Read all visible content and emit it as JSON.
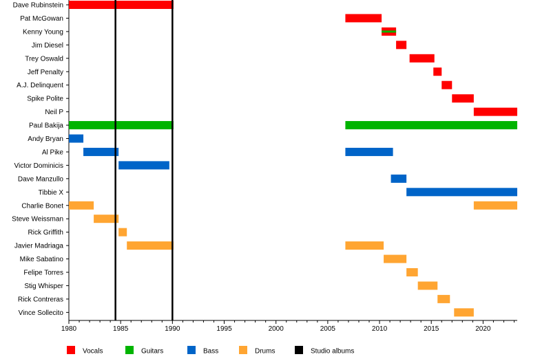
{
  "chart_data": {
    "type": "timeline",
    "xlim": [
      1980,
      2023.3
    ],
    "x_ticks": [
      1980,
      1985,
      1990,
      1995,
      2000,
      2005,
      2010,
      2015,
      2020
    ],
    "x_tick_labels": [
      "1980",
      "1985",
      "1990",
      "1995",
      "2000",
      "2005",
      "2010",
      "2015",
      "2020"
    ],
    "members": [
      "Dave Rubinstein",
      "Pat McGowan",
      "Kenny Young",
      "Jim Diesel",
      "Trey Oswald",
      "Jeff Penalty",
      "A.J. Delinquent",
      "Spike Polite",
      "Neil P",
      "Paul Bakija",
      "Andy Bryan",
      "Al Pike",
      "Victor Dominicis",
      "Dave Manzullo",
      "Tibbie X",
      "Charlie Bonet",
      "Steve Weissman",
      "Rick Griffith",
      "Javier Madriaga",
      "Mike Sabatino",
      "Felipe Torres",
      "Stig Whisper",
      "Rick Contreras",
      "Vince Sollecito"
    ],
    "colors": {
      "vocals": "#ff0000",
      "guitars": "#00b400",
      "bass": "#0064c8",
      "drums": "#ffa532",
      "albums": "#000000"
    },
    "bars": [
      {
        "member": 0,
        "role": "vocals",
        "start": 1980.0,
        "end": 1990.1
      },
      {
        "member": 1,
        "role": "vocals",
        "start": 2006.7,
        "end": 2010.2
      },
      {
        "member": 2,
        "role": "vocals",
        "start": 2010.2,
        "end": 2011.6
      },
      {
        "member": 2,
        "role": "guitars",
        "start": 2010.2,
        "end": 2011.6,
        "stripe": true
      },
      {
        "member": 3,
        "role": "vocals",
        "start": 2011.6,
        "end": 2012.6
      },
      {
        "member": 4,
        "role": "vocals",
        "start": 2012.9,
        "end": 2015.3
      },
      {
        "member": 5,
        "role": "vocals",
        "start": 2015.2,
        "end": 2016.0
      },
      {
        "member": 6,
        "role": "vocals",
        "start": 2016.0,
        "end": 2017.0
      },
      {
        "member": 7,
        "role": "vocals",
        "start": 2017.0,
        "end": 2019.1
      },
      {
        "member": 8,
        "role": "vocals",
        "start": 2019.1,
        "end": 2023.3
      },
      {
        "member": 9,
        "role": "guitars",
        "start": 1980.0,
        "end": 1990.1
      },
      {
        "member": 9,
        "role": "guitars",
        "start": 2006.7,
        "end": 2023.3
      },
      {
        "member": 10,
        "role": "bass",
        "start": 1980.0,
        "end": 1981.4
      },
      {
        "member": 11,
        "role": "bass",
        "start": 1981.4,
        "end": 1984.8
      },
      {
        "member": 11,
        "role": "bass",
        "start": 2006.7,
        "end": 2011.3
      },
      {
        "member": 12,
        "role": "bass",
        "start": 1984.8,
        "end": 1989.7
      },
      {
        "member": 13,
        "role": "bass",
        "start": 2011.1,
        "end": 2012.6
      },
      {
        "member": 14,
        "role": "bass",
        "start": 2012.6,
        "end": 2023.3
      },
      {
        "member": 15,
        "role": "drums",
        "start": 1980.0,
        "end": 1982.4
      },
      {
        "member": 15,
        "role": "drums",
        "start": 2019.1,
        "end": 2023.3
      },
      {
        "member": 16,
        "role": "drums",
        "start": 1982.4,
        "end": 1984.8
      },
      {
        "member": 17,
        "role": "drums",
        "start": 1984.8,
        "end": 1985.6
      },
      {
        "member": 18,
        "role": "drums",
        "start": 1985.6,
        "end": 1990.1
      },
      {
        "member": 18,
        "role": "drums",
        "start": 2006.7,
        "end": 2010.4
      },
      {
        "member": 19,
        "role": "drums",
        "start": 2010.4,
        "end": 2012.6
      },
      {
        "member": 20,
        "role": "drums",
        "start": 2012.6,
        "end": 2013.7
      },
      {
        "member": 21,
        "role": "drums",
        "start": 2013.7,
        "end": 2015.6
      },
      {
        "member": 22,
        "role": "drums",
        "start": 2015.6,
        "end": 2016.8
      },
      {
        "member": 23,
        "role": "drums",
        "start": 2017.2,
        "end": 2019.1
      }
    ],
    "albums": [
      1984.5,
      1990.0
    ],
    "legend": [
      {
        "role": "vocals",
        "label": "Vocals"
      },
      {
        "role": "guitars",
        "label": "Guitars"
      },
      {
        "role": "bass",
        "label": "Bass"
      },
      {
        "role": "drums",
        "label": "Drums"
      },
      {
        "role": "albums",
        "label": "Studio albums"
      }
    ],
    "legend_placement": "bottom",
    "grid": false
  }
}
